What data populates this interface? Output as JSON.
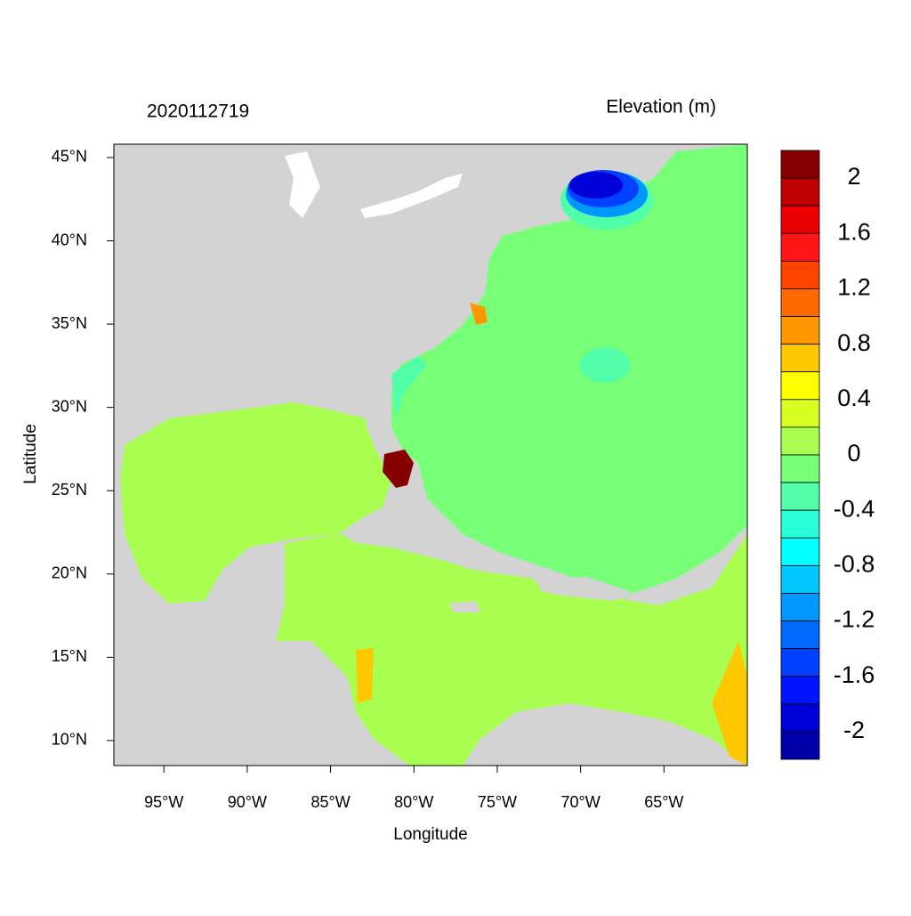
{
  "chart_data": {
    "type": "contour-map",
    "title": "2020112719",
    "subtitle": "Elevation (m)",
    "x_label": "Longitude",
    "y_label": "Latitude",
    "xlim": [
      -98,
      -60
    ],
    "ylim": [
      8.5,
      45.8
    ],
    "xticks": [
      {
        "value": -95,
        "label": "95°W"
      },
      {
        "value": -90,
        "label": "90°W"
      },
      {
        "value": -85,
        "label": "85°W"
      },
      {
        "value": -80,
        "label": "80°W"
      },
      {
        "value": -75,
        "label": "75°W"
      },
      {
        "value": -70,
        "label": "70°W"
      },
      {
        "value": -65,
        "label": "65°W"
      }
    ],
    "yticks": [
      {
        "value": 10,
        "label": "10°N"
      },
      {
        "value": 15,
        "label": "15°N"
      },
      {
        "value": 20,
        "label": "20°N"
      },
      {
        "value": 25,
        "label": "25°N"
      },
      {
        "value": 30,
        "label": "30°N"
      },
      {
        "value": 35,
        "label": "35°N"
      },
      {
        "value": 40,
        "label": "40°N"
      },
      {
        "value": 45,
        "label": "45°N"
      }
    ],
    "colorbar": {
      "levels": [
        2,
        1.8,
        1.6,
        1.4,
        1.2,
        1,
        0.8,
        0.6,
        0.4,
        0.2,
        0,
        -0.2,
        -0.4,
        -0.6,
        -0.8,
        -1,
        -1.2,
        -1.4,
        -1.6,
        -1.8,
        -2
      ],
      "ticks": [
        2,
        1.6,
        1.2,
        0.8,
        0.4,
        0,
        -0.4,
        -0.8,
        -1.2,
        -1.6,
        -2
      ],
      "colors": [
        "#870000",
        "#c00000",
        "#ea0000",
        "#ff1515",
        "#ff4400",
        "#ff6a00",
        "#ff9800",
        "#ffc800",
        "#ffff00",
        "#d8ff22",
        "#a8ff50",
        "#78ff78",
        "#50ffa8",
        "#28ffd8",
        "#00ffff",
        "#00c8ff",
        "#0098ff",
        "#006aff",
        "#0040ff",
        "#0015ff",
        "#0000d8",
        "#0000a8"
      ]
    }
  }
}
